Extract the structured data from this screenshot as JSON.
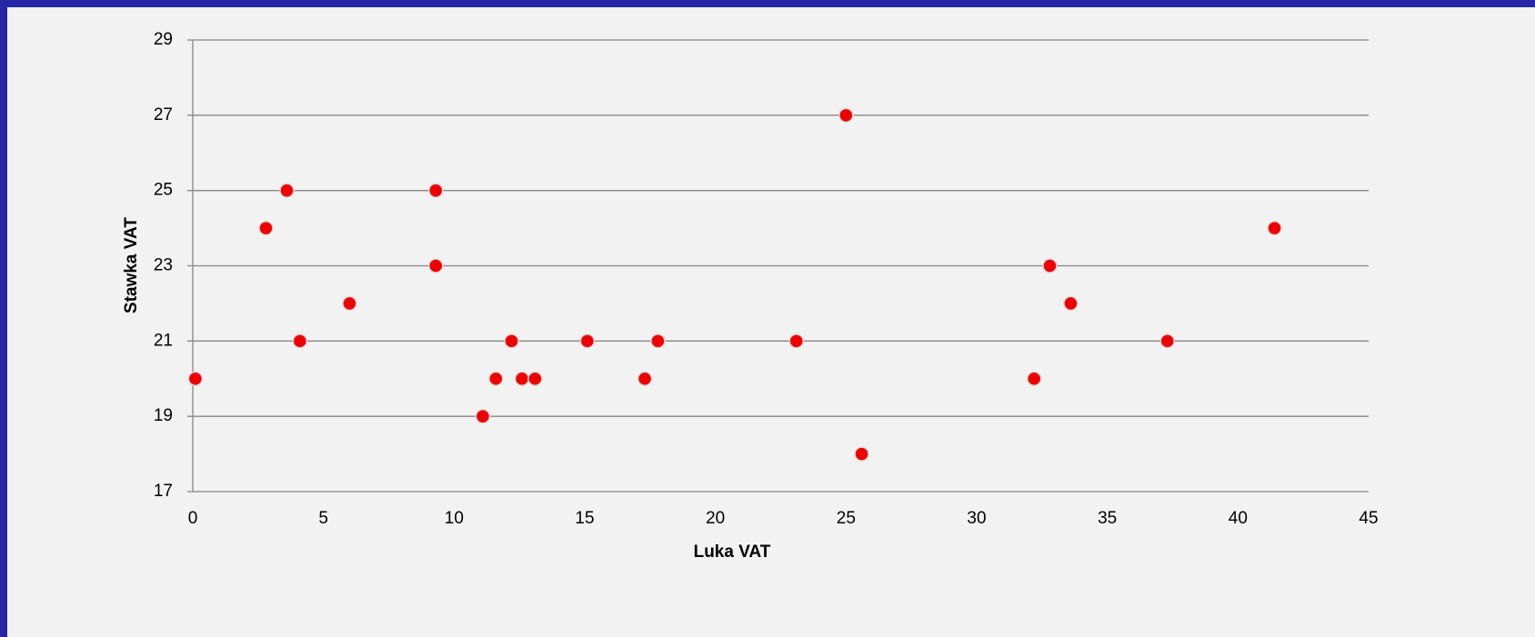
{
  "chart_data": {
    "type": "scatter",
    "x_label": "Luka VAT",
    "y_label": "Stawka VAT",
    "series": [
      {
        "color": "#ee0000",
        "x": [
          0.1,
          2.8,
          3.6,
          4.1,
          6.0,
          9.3,
          9.3,
          11.1,
          11.6,
          12.2,
          12.6,
          13.1,
          15.1,
          17.3,
          17.8,
          23.1,
          25.0,
          25.6,
          32.2,
          32.8,
          33.6,
          37.3,
          41.4
        ],
        "values": [
          20,
          24,
          25,
          21,
          22,
          25,
          23,
          19,
          20,
          21,
          20,
          20,
          21,
          20,
          21,
          21,
          27,
          18,
          20,
          23,
          22,
          21,
          24
        ]
      }
    ],
    "xlim": [
      0,
      45
    ],
    "xticks": [
      0,
      5,
      10,
      15,
      20,
      25,
      30,
      35,
      40,
      45
    ],
    "ylim": [
      17,
      29
    ],
    "yticks": [
      17,
      19,
      21,
      23,
      25,
      27,
      29
    ],
    "grid": true
  }
}
